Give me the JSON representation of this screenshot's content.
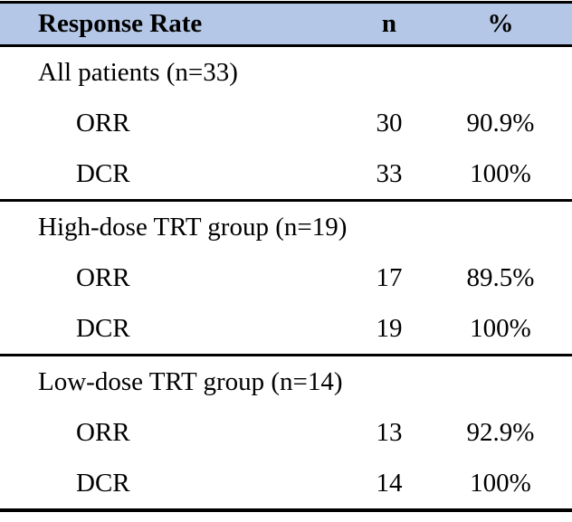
{
  "table": {
    "header": {
      "label": "Response Rate",
      "n": "n",
      "pct": "%"
    },
    "sections": [
      {
        "group": "All patients (n=33)",
        "rows": [
          {
            "label": "ORR",
            "n": "30",
            "pct": "90.9%"
          },
          {
            "label": "DCR",
            "n": "33",
            "pct": "100%"
          }
        ]
      },
      {
        "group": "High-dose TRT group (n=19)",
        "rows": [
          {
            "label": "ORR",
            "n": "17",
            "pct": "89.5%"
          },
          {
            "label": "DCR",
            "n": "19",
            "pct": "100%"
          }
        ]
      },
      {
        "group": "Low-dose TRT group (n=14)",
        "rows": [
          {
            "label": "ORR",
            "n": "13",
            "pct": "92.9%"
          },
          {
            "label": "DCR",
            "n": "14",
            "pct": "100%"
          }
        ]
      }
    ],
    "colors": {
      "header_bg": "#B4C7E6",
      "border": "#000000",
      "text": "#000000"
    }
  }
}
